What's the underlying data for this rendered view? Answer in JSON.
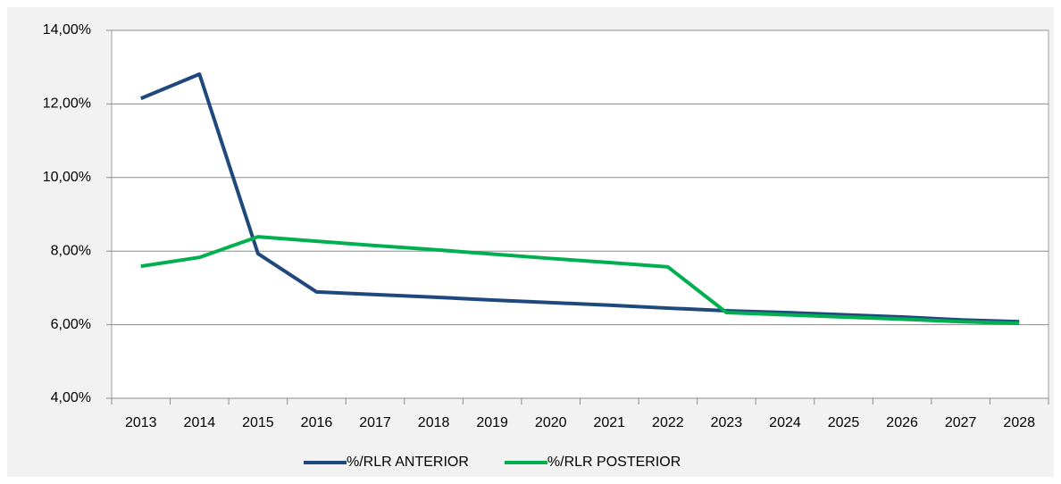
{
  "chart_data": {
    "type": "line",
    "categories": [
      "2013",
      "2014",
      "2015",
      "2016",
      "2017",
      "2018",
      "2019",
      "2020",
      "2021",
      "2022",
      "2023",
      "2024",
      "2025",
      "2026",
      "2027",
      "2028"
    ],
    "series": [
      {
        "name": "%/RLR ANTERIOR",
        "color": "#1f497d",
        "values": [
          12.15,
          12.81,
          7.93,
          6.89,
          6.82,
          6.75,
          6.67,
          6.6,
          6.53,
          6.45,
          6.38,
          6.33,
          6.27,
          6.21,
          6.13,
          6.08
        ]
      },
      {
        "name": "%/RLR POSTERIOR",
        "color": "#00b050",
        "values": [
          7.59,
          7.83,
          8.39,
          8.27,
          8.15,
          8.04,
          7.92,
          7.8,
          7.69,
          7.57,
          6.33,
          6.27,
          6.21,
          6.15,
          6.08,
          6.04
        ]
      }
    ],
    "ylim": [
      4,
      14
    ],
    "yticks": [
      {
        "value": 4,
        "label": "4,00%"
      },
      {
        "value": 6,
        "label": "6,00%"
      },
      {
        "value": 8,
        "label": "8,00%"
      },
      {
        "value": 10,
        "label": "10,00%"
      },
      {
        "value": 12,
        "label": "12,00%"
      },
      {
        "value": 14,
        "label": "14,00%"
      }
    ],
    "grid": true,
    "legend": "bottom"
  }
}
